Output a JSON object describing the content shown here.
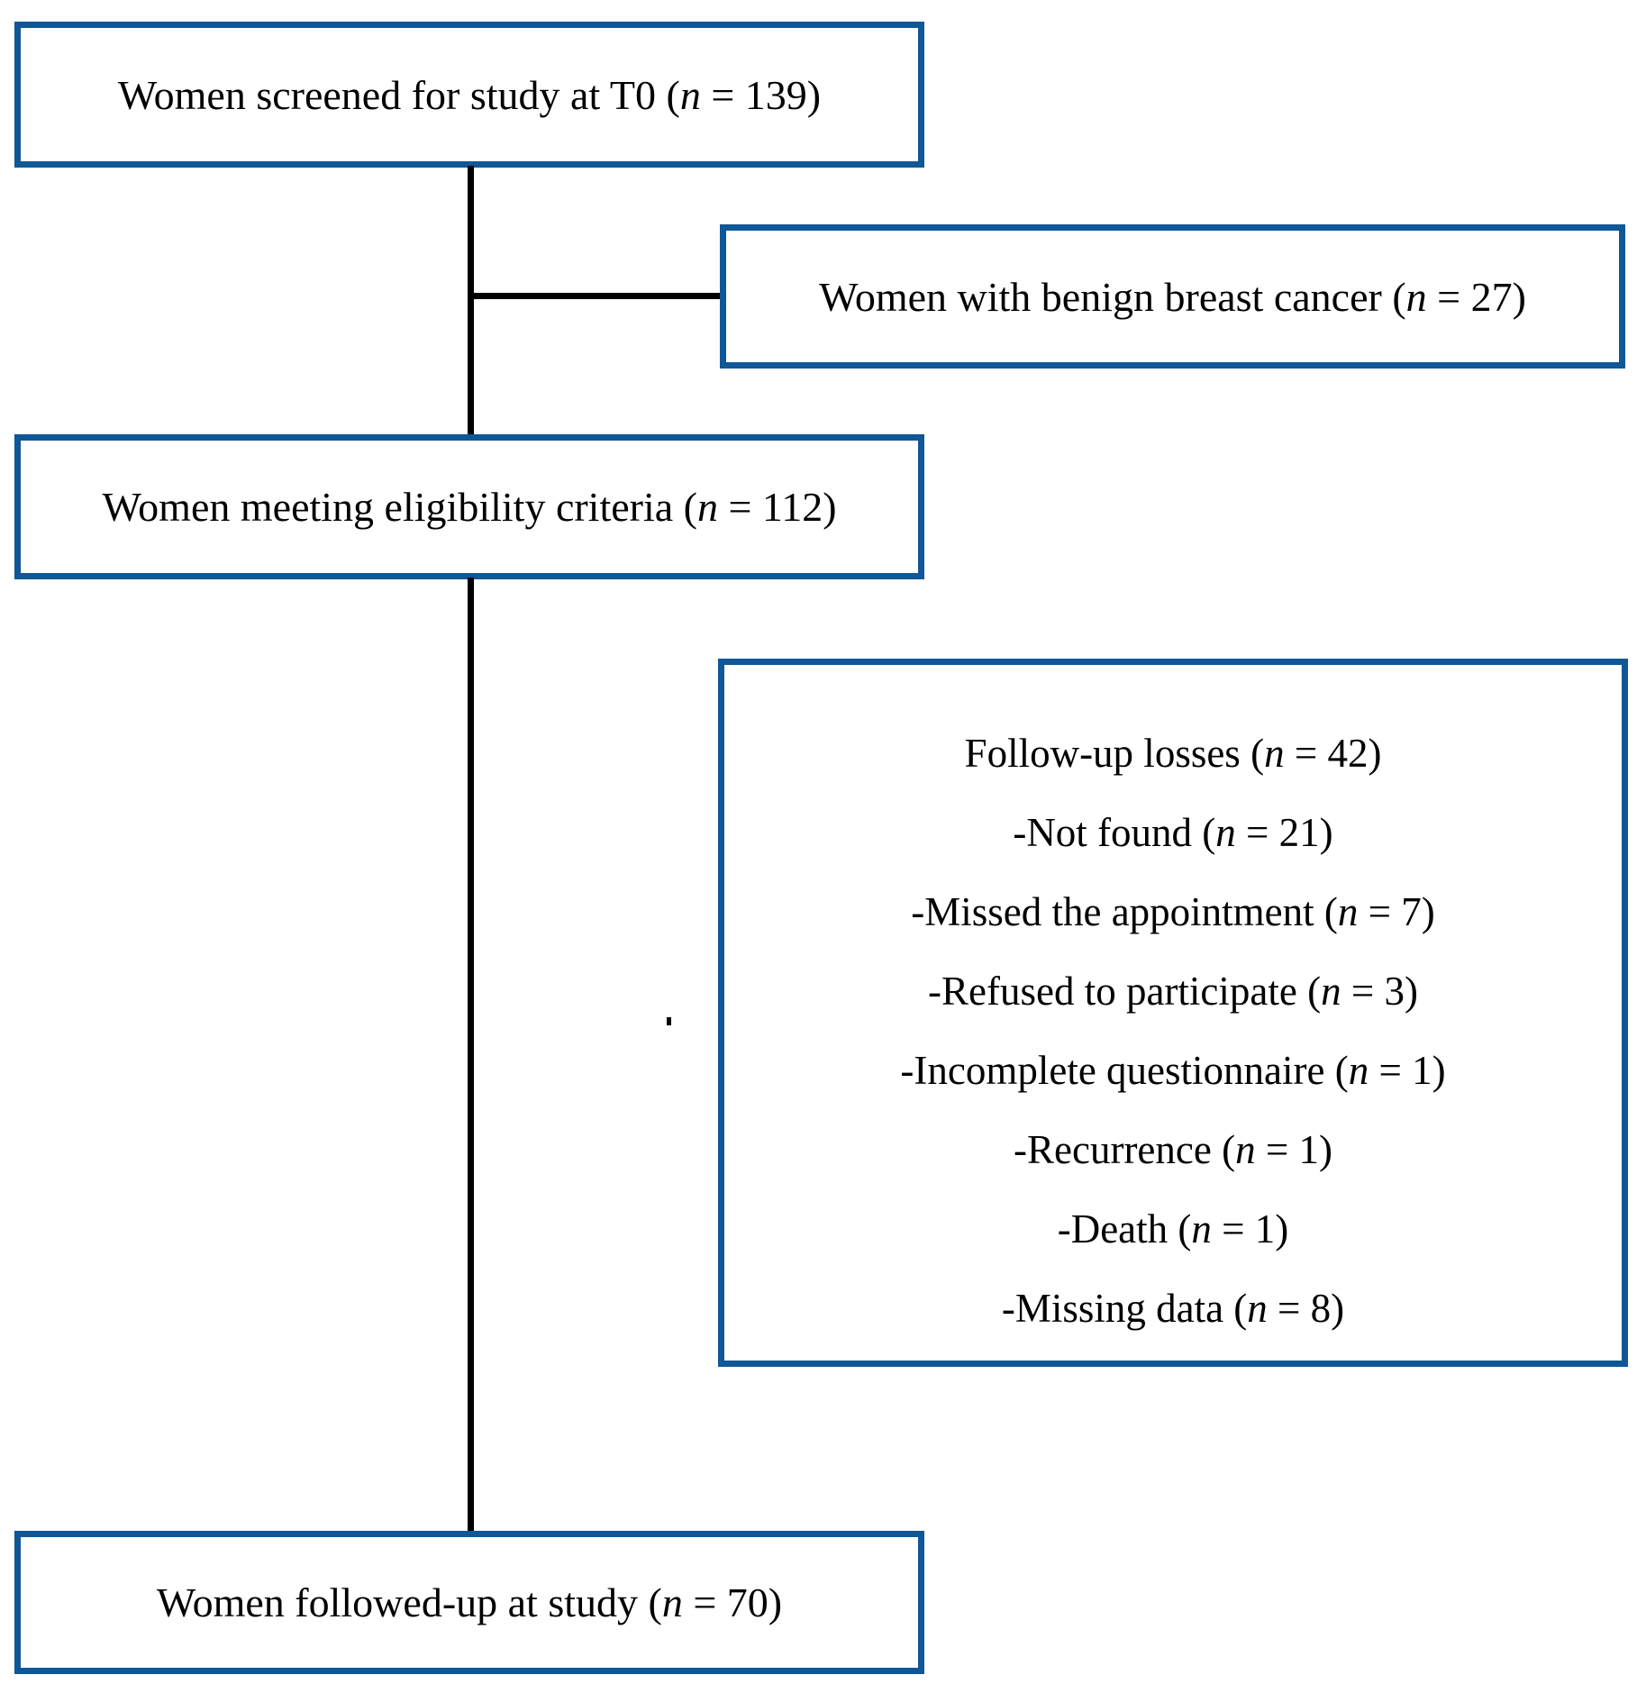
{
  "diagram": {
    "background_color": "#ffffff",
    "box_border_color": "#0f5796",
    "connector_color": "#000000",
    "text_color": "#000000",
    "boxes": {
      "screened": {
        "label": "Women screened for study at T0 (n = 139)"
      },
      "benign": {
        "label": "Women with benign breast cancer (n = 27)"
      },
      "eligible": {
        "label": "Women meeting eligibility criteria (n = 112)"
      },
      "losses": {
        "title": "Follow-up losses (n = 42)",
        "items": [
          "-Not found (n = 21)",
          "-Missed the appointment (n = 7)",
          "-Refused to participate (n = 3)",
          "-Incomplete questionnaire (n = 1)",
          "-Recurrence (n = 1)",
          "-Death (n = 1)",
          "-Missing data (n = 8)"
        ]
      },
      "followed": {
        "label": "Women followed-up at study (n = 70)"
      }
    }
  }
}
